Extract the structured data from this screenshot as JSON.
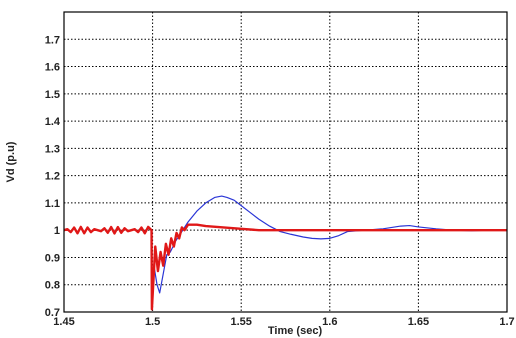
{
  "chart_data": {
    "type": "line",
    "title": "",
    "xlabel": "Time (sec)",
    "ylabel": "Vd (p.u)",
    "xlim": [
      1.45,
      1.7
    ],
    "ylim": [
      0.7,
      1.8
    ],
    "xticks": [
      "1.45",
      "1.5",
      "1.55",
      "1.6",
      "1.65",
      "1.7"
    ],
    "yticks": [
      "0.7",
      "0.8",
      "0.9",
      "1",
      "1.1",
      "1.2",
      "1.3",
      "1.4",
      "1.5",
      "1.6",
      "1.7"
    ],
    "grid": true,
    "series": [
      {
        "color": "#2a35d6",
        "x": [
          1.45,
          1.4994,
          1.4996,
          1.501,
          1.5025,
          1.504,
          1.506,
          1.508,
          1.51,
          1.513,
          1.516,
          1.52,
          1.525,
          1.53,
          1.535,
          1.539,
          1.542,
          1.546,
          1.55,
          1.555,
          1.56,
          1.566,
          1.572,
          1.578,
          1.585,
          1.59,
          1.595,
          1.6,
          1.605,
          1.61,
          1.62,
          1.63,
          1.64,
          1.645,
          1.65,
          1.66,
          1.67,
          1.68,
          1.69,
          1.7
        ],
        "y": [
          1.0,
          1.0,
          0.74,
          0.86,
          0.8,
          0.77,
          0.84,
          0.91,
          0.92,
          0.96,
          0.99,
          1.03,
          1.07,
          1.1,
          1.12,
          1.125,
          1.12,
          1.11,
          1.09,
          1.065,
          1.04,
          1.015,
          0.995,
          0.985,
          0.975,
          0.97,
          0.968,
          0.97,
          0.98,
          0.995,
          1.0,
          1.005,
          1.015,
          1.017,
          1.012,
          1.005,
          1.0,
          0.998,
          1.0,
          1.0
        ]
      },
      {
        "color": "#e01818",
        "x": [
          1.45,
          1.4994,
          1.4996,
          1.5005,
          1.5015,
          1.503,
          1.5045,
          1.506,
          1.5075,
          1.509,
          1.5105,
          1.512,
          1.5135,
          1.515,
          1.5165,
          1.518,
          1.52,
          1.525,
          1.53,
          1.54,
          1.55,
          1.56,
          1.6,
          1.7
        ],
        "y": [
          1.0,
          1.0,
          0.71,
          0.82,
          0.94,
          0.85,
          0.92,
          0.87,
          0.95,
          0.91,
          0.97,
          0.94,
          0.99,
          0.97,
          1.01,
          1.0,
          1.02,
          1.02,
          1.015,
          1.01,
          1.005,
          1.0,
          1.0,
          1.0
        ]
      }
    ]
  }
}
